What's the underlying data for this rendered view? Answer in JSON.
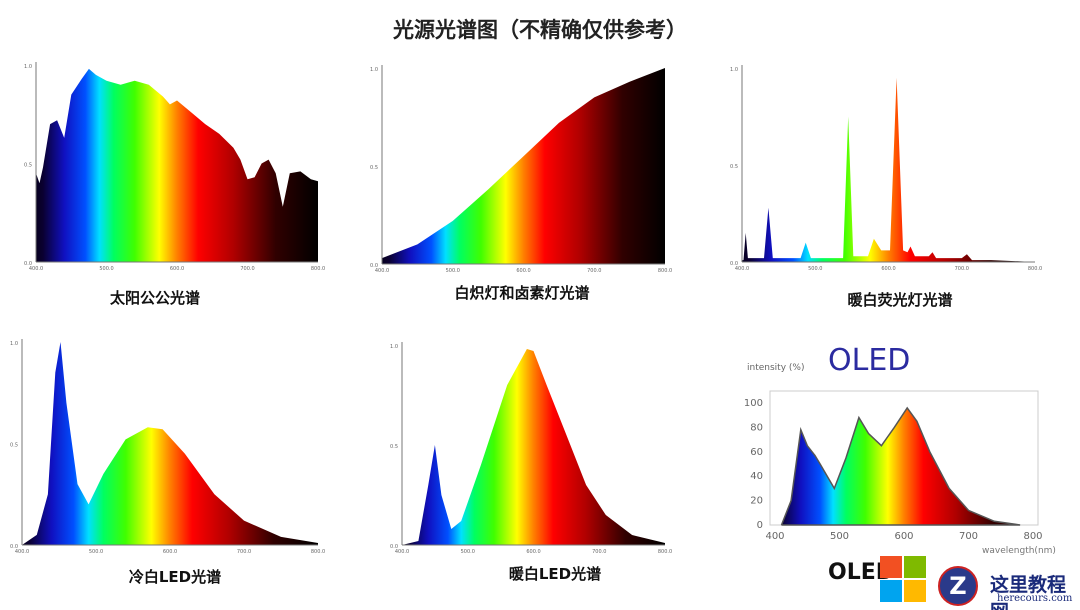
{
  "title": "光源光谱图（不精确仅供参考）",
  "chart_data": [
    {
      "type": "area",
      "caption": "太阳公公光谱",
      "xlim": [
        400,
        800
      ],
      "ylim": [
        0,
        1
      ],
      "yticks": [
        "0.0",
        "0.5",
        "1.0"
      ],
      "xticks": [
        "400.0",
        "500.0",
        "600.0",
        "700.0",
        "800.0"
      ],
      "x": [
        400,
        405,
        410,
        420,
        430,
        440,
        450,
        465,
        475,
        485,
        500,
        520,
        540,
        560,
        580,
        590,
        600,
        620,
        640,
        660,
        680,
        690,
        700,
        710,
        720,
        730,
        740,
        750,
        760,
        775,
        790,
        800
      ],
      "y": [
        0.45,
        0.4,
        0.48,
        0.7,
        0.72,
        0.63,
        0.85,
        0.93,
        0.98,
        0.95,
        0.92,
        0.9,
        0.92,
        0.9,
        0.84,
        0.8,
        0.82,
        0.76,
        0.7,
        0.65,
        0.58,
        0.52,
        0.42,
        0.43,
        0.5,
        0.52,
        0.45,
        0.28,
        0.45,
        0.46,
        0.42,
        0.41
      ]
    },
    {
      "type": "area",
      "caption": "白炽灯和卤素灯光谱",
      "xlim": [
        400,
        800
      ],
      "ylim": [
        0,
        1
      ],
      "yticks": [
        "0.0",
        "0.5",
        "1.0"
      ],
      "xticks": [
        "400.0",
        "500.0",
        "600.0",
        "700.0",
        "800.0"
      ],
      "x": [
        400,
        450,
        500,
        550,
        600,
        650,
        700,
        750,
        800
      ],
      "y": [
        0.03,
        0.1,
        0.22,
        0.38,
        0.55,
        0.72,
        0.85,
        0.93,
        1.0
      ]
    },
    {
      "type": "area",
      "caption": "暖白荧光灯光谱",
      "xlim": [
        400,
        800
      ],
      "ylim": [
        0,
        1
      ],
      "yticks": [
        "0.0",
        "0.5",
        "1.0"
      ],
      "xticks": [
        "400.0",
        "500.0",
        "600.0",
        "700.0",
        "800.0"
      ],
      "x": [
        400,
        402,
        405,
        408,
        430,
        436,
        442,
        480,
        487,
        494,
        538,
        545,
        552,
        572,
        580,
        590,
        602,
        611,
        620,
        626,
        630,
        636,
        655,
        660,
        665,
        700,
        707,
        714,
        740,
        800
      ],
      "y": [
        0.01,
        0.01,
        0.15,
        0.02,
        0.02,
        0.28,
        0.02,
        0.02,
        0.1,
        0.02,
        0.02,
        0.75,
        0.03,
        0.03,
        0.12,
        0.06,
        0.06,
        0.95,
        0.06,
        0.05,
        0.08,
        0.03,
        0.03,
        0.05,
        0.02,
        0.02,
        0.04,
        0.01,
        0.01,
        0.0
      ]
    },
    {
      "type": "area",
      "caption": "冷白LED光谱",
      "xlim": [
        400,
        800
      ],
      "ylim": [
        0,
        1
      ],
      "yticks": [
        "0.0",
        "0.5",
        "1.0"
      ],
      "xticks": [
        "400.0",
        "500.0",
        "600.0",
        "700.0",
        "800.0"
      ],
      "x": [
        400,
        420,
        435,
        445,
        452,
        460,
        475,
        490,
        510,
        540,
        570,
        590,
        620,
        660,
        700,
        750,
        800
      ],
      "y": [
        0,
        0.05,
        0.25,
        0.85,
        1.0,
        0.7,
        0.3,
        0.2,
        0.35,
        0.52,
        0.58,
        0.57,
        0.45,
        0.25,
        0.12,
        0.04,
        0.01
      ]
    },
    {
      "type": "area",
      "caption": "暖白LED光谱",
      "xlim": [
        400,
        800
      ],
      "ylim": [
        0,
        1
      ],
      "yticks": [
        "0.0",
        "0.5",
        "1.0"
      ],
      "xticks": [
        "400.0",
        "500.0",
        "600.0",
        "700.0",
        "800.0"
      ],
      "x": [
        400,
        425,
        440,
        450,
        460,
        475,
        490,
        520,
        560,
        590,
        600,
        620,
        650,
        680,
        710,
        750,
        800
      ],
      "y": [
        0,
        0.02,
        0.3,
        0.5,
        0.25,
        0.08,
        0.12,
        0.4,
        0.8,
        0.98,
        0.97,
        0.8,
        0.55,
        0.3,
        0.15,
        0.05,
        0.01
      ]
    },
    {
      "type": "area",
      "title": "OLED",
      "caption": "",
      "xlabel": "wavelength(nm)",
      "ylabel": "intensity (%)",
      "xlim": [
        400,
        800
      ],
      "ylim": [
        0,
        100
      ],
      "yticks": [
        "0",
        "20",
        "40",
        "60",
        "80",
        "100"
      ],
      "xticks": [
        "400",
        "500",
        "600",
        "700",
        "800"
      ],
      "x": [
        410,
        425,
        440,
        450,
        462,
        470,
        492,
        510,
        530,
        545,
        565,
        585,
        605,
        620,
        640,
        670,
        700,
        740,
        780
      ],
      "y": [
        0,
        20,
        78,
        65,
        57,
        50,
        30,
        55,
        88,
        75,
        65,
        80,
        96,
        85,
        60,
        30,
        12,
        3,
        0
      ]
    }
  ],
  "watermark": {
    "oled_text": "OLED",
    "site_name": "这里教程网",
    "site_url": "herecours.com",
    "win_colors": [
      "#f25022",
      "#7fba00",
      "#00a4ef",
      "#ffb900"
    ]
  }
}
